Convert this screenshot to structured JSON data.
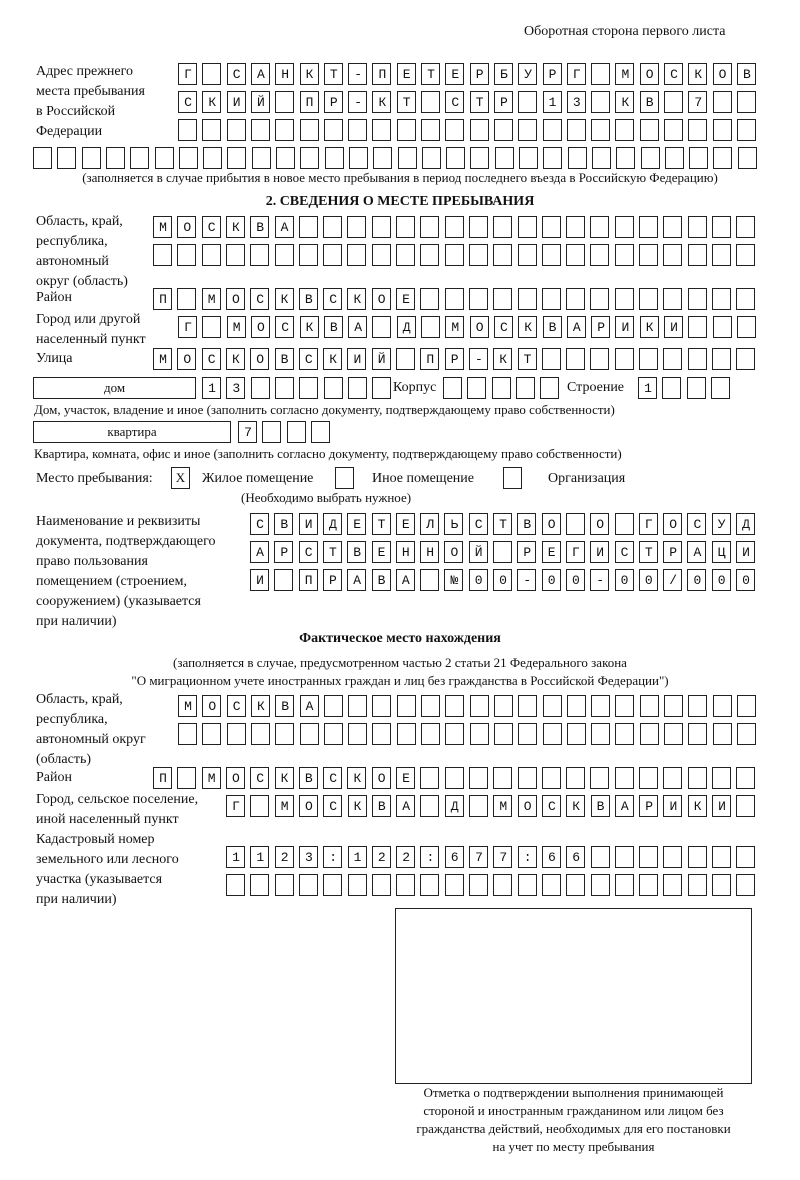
{
  "header": "Оборотная сторона первого листа",
  "prev_address": {
    "label": [
      "Адрес прежнего",
      "места пребывания",
      "в Российской",
      "Федерации"
    ],
    "rows": [
      "Г САНКТ-ПЕТЕРБУРГ МОСКОВ",
      "СКИЙ ПР-КТ СТР 13 КВ 7  ",
      "                        ",
      "                              "
    ],
    "note": "(заполняется в случае прибытия в новое место пребывания в период последнего въезда в Российскую Федерацию)"
  },
  "section2": {
    "title": "2. СВЕДЕНИЯ О МЕСТЕ ПРЕБЫВАНИЯ",
    "region_label": [
      "Область, край,",
      "республика,",
      "автономный",
      "округ (область)"
    ],
    "region_rows": [
      "МОСКВА                   ",
      "                         "
    ],
    "district_label": "Район",
    "district_row": "П МОСКВСКОЕ              ",
    "city_label": [
      "Город или другой",
      "населенный пункт"
    ],
    "city_row": "Г МОСКВА Д МОСКВАРИКИ   ",
    "street_label": "Улица",
    "street_row": "МОСКОВСКИЙ ПР-КТ         ",
    "house_type": "дом",
    "house_cells": "13      ",
    "korpus_label": "Корпус",
    "korpus_cells": "     ",
    "stroenie_label": "Строение",
    "stroenie_cells": "1   ",
    "house_note": "Дом, участок, владение и иное (заполнить согласно документу, подтверждающему право собственности)",
    "flat_type": "квартира",
    "flat_cells": "7   ",
    "flat_note": "Квартира, комната, офис и иное (заполнить согласно документу, подтверждающему право собственности)",
    "stay_label": "Место пребывания:",
    "options": [
      {
        "mark": "X",
        "label": "Жилое помещение"
      },
      {
        "mark": "",
        "label": "Иное помещение"
      },
      {
        "mark": "",
        "label": "Организация"
      }
    ],
    "stay_note": "(Необходимо выбрать нужное)",
    "doc_label": [
      "Наименование и реквизиты",
      "документа, подтверждающего",
      "право пользования",
      "помещением (строением,",
      "сооружением) (указывается",
      "при наличии)"
    ],
    "doc_rows": [
      "СВИДЕТЕЛЬСТВО О ГОСУД",
      "АРСТВЕННОЙ РЕГИСТРАЦИ",
      "И ПРАВА №00-00-00/000"
    ]
  },
  "actual": {
    "title": "Фактическое место нахождения",
    "note1": "(заполняется в случае, предусмотренном частью 2 статьи 21 Федерального закона",
    "note2": "\"О миграционном учете иностранных граждан и лиц без гражданства в Российской Федерации\")",
    "region_label": [
      "Область, край,",
      "республика,",
      "автономный округ",
      "(область)"
    ],
    "region_rows": [
      "МОСКВА                  ",
      "                        "
    ],
    "district_label": "Район",
    "district_row": "П МОСКВСКОЕ              ",
    "city_label": [
      "Город, сельское поселение,",
      "иной населенный пункт"
    ],
    "city_row": "Г МОСКВА Д МОСКВАРИКИ ",
    "cadastre_label": [
      "Кадастровый номер",
      "земельного или лесного",
      "участка (указывается",
      "при наличии)"
    ],
    "cadastre_rows": [
      "1123:122:677:66       ",
      "                      "
    ]
  },
  "confirmation": {
    "caption": [
      "Отметка о подтверждении выполнения принимающей",
      "стороной и иностранным гражданином или лицом без",
      "гражданства действий, необходимых для его постановки",
      "на учет по месту пребывания"
    ]
  }
}
